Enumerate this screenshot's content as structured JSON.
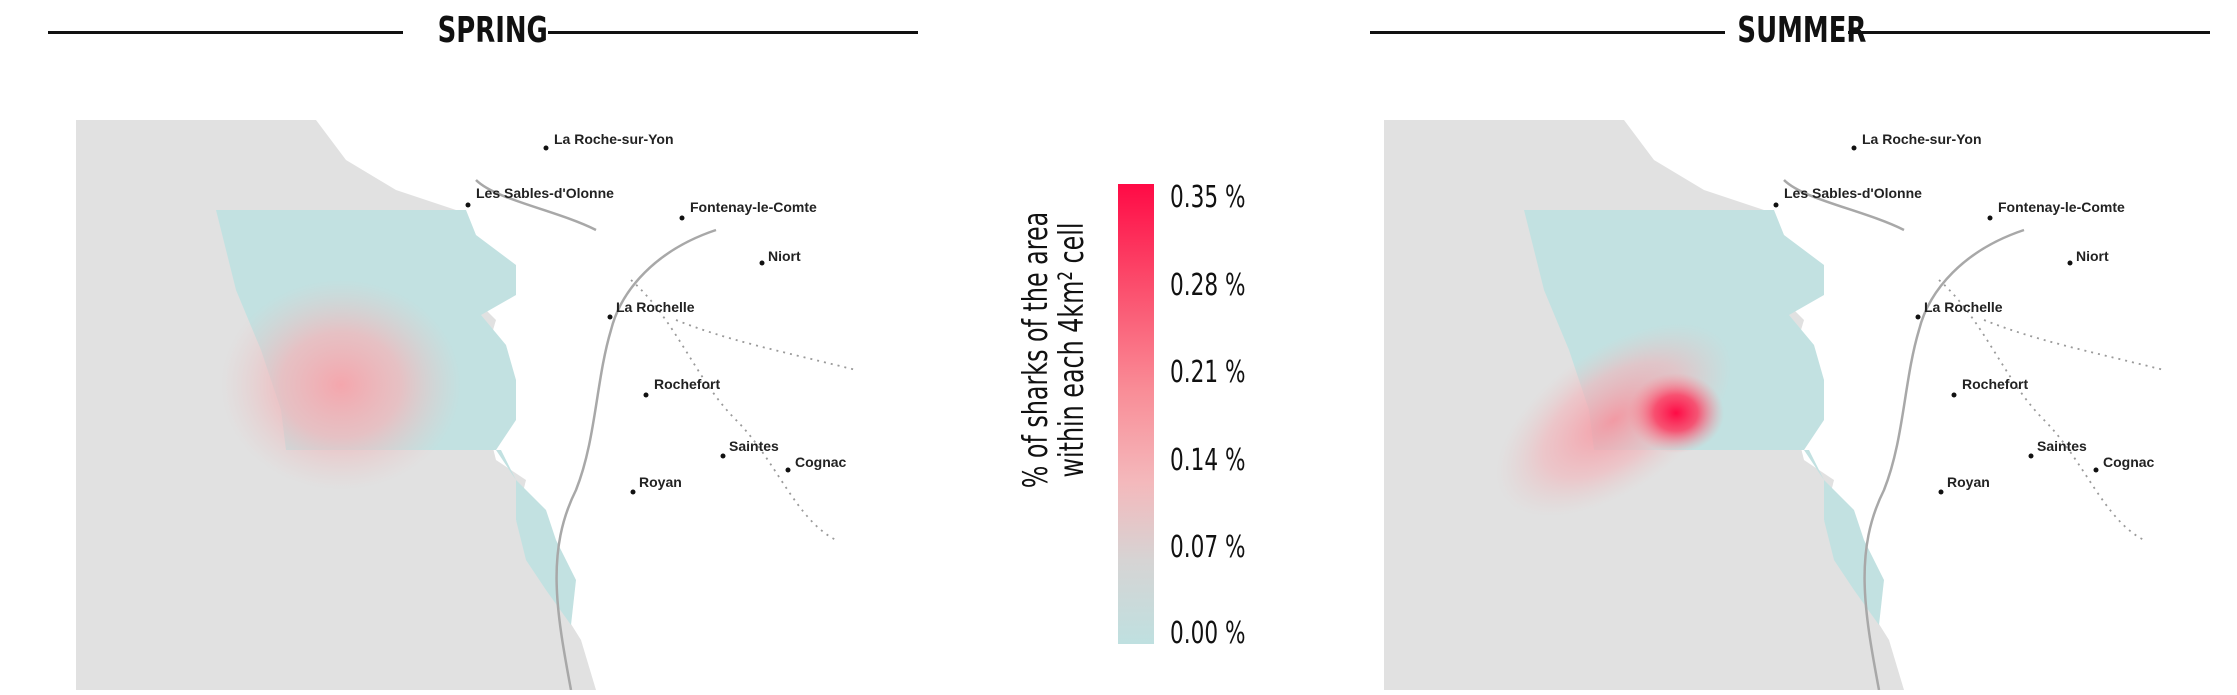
{
  "panels": [
    {
      "title": "SPRING",
      "cities": [
        {
          "name": "La Roche-sur-Yon"
        },
        {
          "name": "Les Sables-d'Olonne"
        },
        {
          "name": "Fontenay-le-Comte"
        },
        {
          "name": "Niort"
        },
        {
          "name": "La Rochelle"
        },
        {
          "name": "Rochefort"
        },
        {
          "name": "Saintes"
        },
        {
          "name": "Cognac"
        },
        {
          "name": "Royan"
        }
      ],
      "hotspot_peak_percent": 0.12
    },
    {
      "title": "SUMMER",
      "cities": [
        {
          "name": "La Roche-sur-Yon"
        },
        {
          "name": "Les Sables-d'Olonne"
        },
        {
          "name": "Fontenay-le-Comte"
        },
        {
          "name": "Niort"
        },
        {
          "name": "La Rochelle"
        },
        {
          "name": "Rochefort"
        },
        {
          "name": "Saintes"
        },
        {
          "name": "Cognac"
        },
        {
          "name": "Royan"
        }
      ],
      "hotspot_peak_percent": 0.35
    }
  ],
  "legend": {
    "title_line1": "% of sharks of the area",
    "title_line2": "within each 4km² cell",
    "ticks": [
      "0.35 %",
      "0.28 %",
      "0.21 %",
      "0.14 %",
      "0.07 %",
      "0.00 %"
    ],
    "colors": {
      "low": "#bfe0e0",
      "mid": "#f4b9bc",
      "high": "#ff0a45"
    }
  },
  "colors": {
    "sea": "#e1e1e1",
    "land": "#ffffff",
    "river": "#a8a8a8",
    "study_area": "#c2e1e1"
  }
}
